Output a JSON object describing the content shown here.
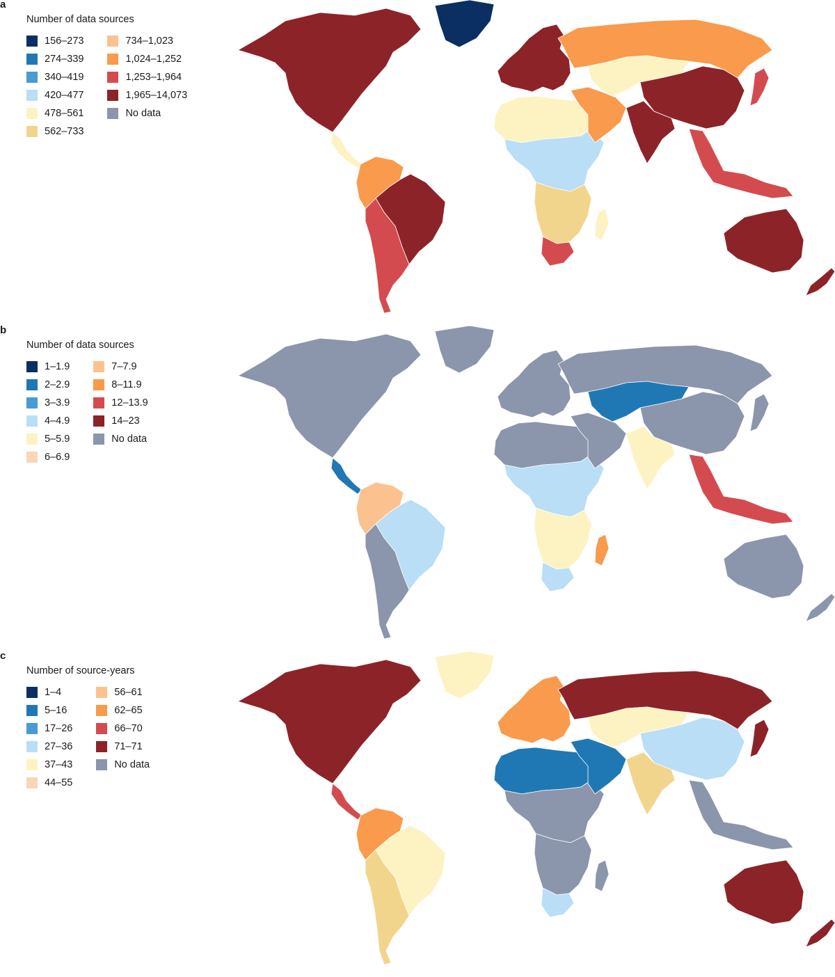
{
  "palette": {
    "c1": "#0b2f63",
    "c2": "#1f78b4",
    "c3": "#4a9bd1",
    "c4": "#b9def5",
    "c5": "#fdf2c2",
    "c6": "#f2d58d",
    "c7": "#fbc290",
    "c8": "#f99a4c",
    "c9": "#d44b4f",
    "c10": "#8c2328",
    "nodata": "#8b95ab",
    "c6b": "#fcd5b6"
  },
  "panels": [
    {
      "letter": "a",
      "legend_title": "Number of data sources",
      "items": [
        {
          "label": "156–273",
          "color": "#0b2f63"
        },
        {
          "label": "274–339",
          "color": "#1f78b4"
        },
        {
          "label": "340–419",
          "color": "#4a9bd1"
        },
        {
          "label": "420–477",
          "color": "#b9def5"
        },
        {
          "label": "478–561",
          "color": "#fdf2c2"
        },
        {
          "label": "562–733",
          "color": "#f2d58d"
        },
        {
          "label": "734–1,023",
          "color": "#fbc290"
        },
        {
          "label": "1,024–1,252",
          "color": "#f99a4c"
        },
        {
          "label": "1,253–1,964",
          "color": "#d44b4f"
        },
        {
          "label": "1,965–14,073",
          "color": "#8c2328"
        },
        {
          "label": "No data",
          "color": "#8b95ab"
        }
      ],
      "fills": {
        "north_america": "#8c2328",
        "greenland": "#0b2f63",
        "central_america": "#fdf2c2",
        "south_america_north": "#f99a4c",
        "brazil": "#8c2328",
        "south_america_south": "#d44b4f",
        "europe": "#8c2328",
        "russia": "#f99a4c",
        "africa_north": "#fdf2c2",
        "africa_middle": "#b9def5",
        "africa_south": "#f2d58d",
        "south_africa": "#d44b4f",
        "madagascar": "#fdf2c2",
        "middle_east": "#f99a4c",
        "central_asia": "#fdf2c2",
        "china": "#8c2328",
        "india": "#8c2328",
        "se_asia": "#d44b4f",
        "japan": "#d44b4f",
        "australia": "#8c2328",
        "new_zealand": "#8c2328"
      }
    },
    {
      "letter": "b",
      "legend_title": "Number of data sources",
      "items": [
        {
          "label": "1–1.9",
          "color": "#0b2f63"
        },
        {
          "label": "2–2.9",
          "color": "#1f78b4"
        },
        {
          "label": "3–3.9",
          "color": "#4a9bd1"
        },
        {
          "label": "4–4.9",
          "color": "#b9def5"
        },
        {
          "label": "5–5.9",
          "color": "#fdf2c2"
        },
        {
          "label": "6–6.9",
          "color": "#fcd5b6"
        },
        {
          "label": "7–7.9",
          "color": "#fbc290"
        },
        {
          "label": "8–11.9",
          "color": "#f99a4c"
        },
        {
          "label": "12–13.9",
          "color": "#d44b4f"
        },
        {
          "label": "14–23",
          "color": "#8c2328"
        },
        {
          "label": "No data",
          "color": "#8b95ab"
        }
      ],
      "fills": {
        "north_america": "#8b95ab",
        "greenland": "#8b95ab",
        "central_america": "#1f78b4",
        "south_america_north": "#fbc290",
        "brazil": "#b9def5",
        "south_america_south": "#8b95ab",
        "europe": "#8b95ab",
        "russia": "#8b95ab",
        "africa_north": "#8b95ab",
        "africa_middle": "#b9def5",
        "africa_south": "#fdf2c2",
        "south_africa": "#b9def5",
        "madagascar": "#f99a4c",
        "middle_east": "#8b95ab",
        "central_asia": "#1f78b4",
        "china": "#8b95ab",
        "india": "#fdf2c2",
        "se_asia": "#d44b4f",
        "japan": "#8b95ab",
        "australia": "#8b95ab",
        "new_zealand": "#8b95ab"
      }
    },
    {
      "letter": "c",
      "legend_title": "Number of source-years",
      "items": [
        {
          "label": "1–4",
          "color": "#0b2f63"
        },
        {
          "label": "5–16",
          "color": "#1f78b4"
        },
        {
          "label": "17–26",
          "color": "#4a9bd1"
        },
        {
          "label": "27–36",
          "color": "#b9def5"
        },
        {
          "label": "37–43",
          "color": "#fdf2c2"
        },
        {
          "label": "44–55",
          "color": "#fcd5b6"
        },
        {
          "label": "56–61",
          "color": "#fbc290"
        },
        {
          "label": "62–65",
          "color": "#f99a4c"
        },
        {
          "label": "66–70",
          "color": "#d44b4f"
        },
        {
          "label": "71–71",
          "color": "#8c2328"
        },
        {
          "label": "No data",
          "color": "#8b95ab"
        }
      ],
      "fills": {
        "north_america": "#8c2328",
        "greenland": "#fdf2c2",
        "central_america": "#d44b4f",
        "south_america_north": "#f99a4c",
        "brazil": "#fdf2c2",
        "south_america_south": "#f2d58d",
        "europe": "#f99a4c",
        "russia": "#8c2328",
        "africa_north": "#1f78b4",
        "africa_middle": "#8b95ab",
        "africa_south": "#8b95ab",
        "south_africa": "#b9def5",
        "madagascar": "#8b95ab",
        "middle_east": "#1f78b4",
        "central_asia": "#fdf2c2",
        "china": "#b9def5",
        "india": "#f2d58d",
        "se_asia": "#8b95ab",
        "japan": "#8c2328",
        "australia": "#8c2328",
        "new_zealand": "#8c2328"
      }
    }
  ]
}
